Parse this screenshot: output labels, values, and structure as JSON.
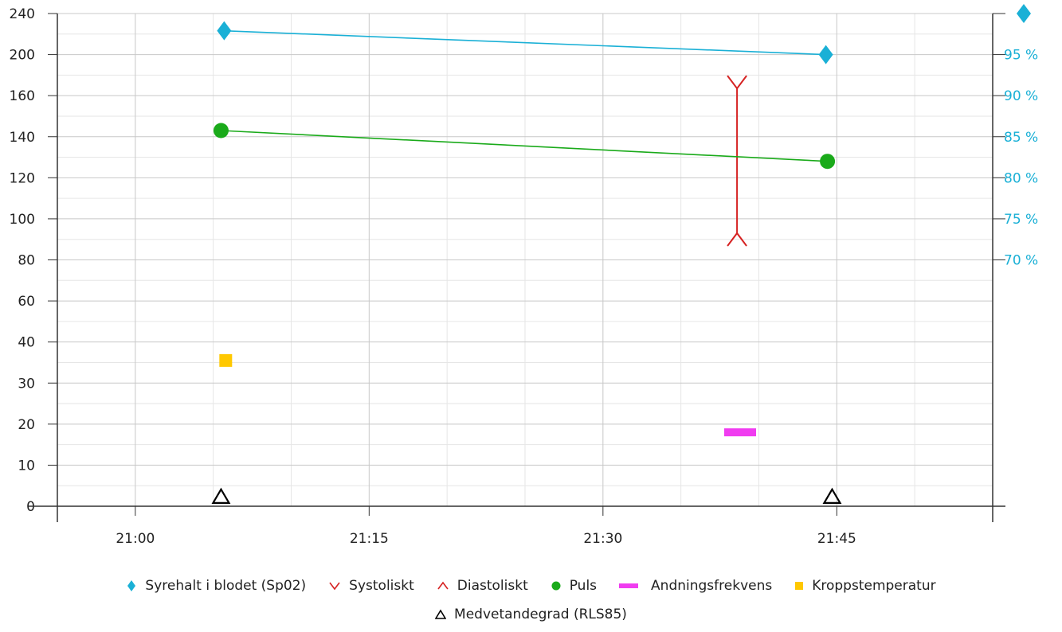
{
  "chart_data": {
    "type": "line",
    "x_ticks": [
      "21:00",
      "21:15",
      "21:30",
      "21:45"
    ],
    "x_tick_minutes": [
      0,
      15,
      30,
      45
    ],
    "xlim_minutes": [
      -5,
      55
    ],
    "left_axis": {
      "tick_values": [
        0,
        10,
        20,
        30,
        40,
        60,
        80,
        100,
        120,
        140,
        160,
        200,
        240
      ],
      "tick_labels": [
        "0",
        "10",
        "20",
        "30",
        "40",
        "60",
        "80",
        "100",
        "120",
        "140",
        "160",
        "200",
        "240"
      ],
      "minor_values": [
        5,
        15,
        25,
        35,
        50,
        70,
        90,
        110,
        130,
        150,
        180,
        220
      ]
    },
    "right_axis": {
      "tick_percent": [
        70,
        75,
        80,
        85,
        90,
        95,
        100
      ],
      "tick_labels": [
        "70 %",
        "75 %",
        "80 %",
        "85 %",
        "90 %",
        "95 %",
        ""
      ],
      "color": "#1ab0d6"
    },
    "series": [
      {
        "name": "Syrehalt i blodet (Sp02)",
        "color": "#1ab0d6",
        "marker": "diamond",
        "axis": "right",
        "points": [
          {
            "t": 5.7,
            "v": 97.9
          },
          {
            "t": 44.3,
            "v": 95
          }
        ]
      },
      {
        "name": "Puls",
        "color": "#1aaa1a",
        "marker": "circle",
        "axis": "left",
        "points": [
          {
            "t": 5.5,
            "v": 143
          },
          {
            "t": 44.4,
            "v": 128
          }
        ]
      },
      {
        "name": "Systoliskt",
        "color": "#d62222",
        "marker": "v",
        "axis": "left",
        "points": [
          {
            "t": 38.6,
            "v": 167
          }
        ]
      },
      {
        "name": "Diastoliskt",
        "color": "#d62222",
        "marker": "caret",
        "axis": "left",
        "points": [
          {
            "t": 38.6,
            "v": 93
          }
        ]
      },
      {
        "name": "Andningsfrekvens",
        "color": "#f03cf0",
        "marker": "bar",
        "axis": "left",
        "points": [
          {
            "t": 38.8,
            "v": 18
          }
        ]
      },
      {
        "name": "Kroppstemperatur",
        "color": "#ffc800",
        "marker": "square",
        "axis": "left",
        "points": [
          {
            "t": 5.8,
            "v": 35.5
          }
        ]
      },
      {
        "name": "Medvetandegrad (RLS85)",
        "color": "#000000",
        "marker": "triangle",
        "axis": "left",
        "points": [
          {
            "t": 5.5,
            "v": 1
          },
          {
            "t": 44.7,
            "v": 1
          }
        ]
      }
    ],
    "grid": true
  },
  "legend_rows": [
    [
      {
        "label": "Syrehalt i blodet (Sp02)",
        "marker": "diamond",
        "color": "#1ab0d6"
      },
      {
        "label": "Systoliskt",
        "marker": "v",
        "color": "#d62222"
      },
      {
        "label": "Diastoliskt",
        "marker": "caret",
        "color": "#d62222"
      },
      {
        "label": "Puls",
        "marker": "circle",
        "color": "#1aaa1a"
      },
      {
        "label": "Andningsfrekvens",
        "marker": "bar",
        "color": "#f03cf0"
      },
      {
        "label": "Kroppstemperatur",
        "marker": "square",
        "color": "#ffc800"
      }
    ],
    [
      {
        "label": "Medvetandegrad (RLS85)",
        "marker": "triangle",
        "color": "#000000"
      }
    ]
  ]
}
